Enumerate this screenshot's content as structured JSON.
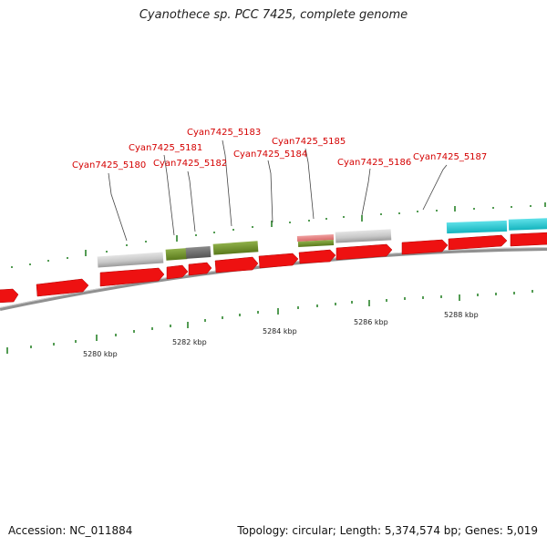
{
  "title": "Cyanothece sp. PCC 7425, complete genome",
  "footer": {
    "accession": "Accession: NC_011884",
    "summary": "Topology: circular; Length: 5,374,574 bp; Genes: 5,019"
  },
  "colors": {
    "forward_cds": "#ee1111",
    "backbone": "#888888",
    "tick": "#1a7a1a",
    "label": "#d40000",
    "hit_grey": "#c8c8c8",
    "hit_olive": "#6b8e23",
    "hit_dark": "#666666",
    "hit_salmon": "#e08080",
    "hit_cyan": "#1ec8d2"
  },
  "scale_labels": [
    "5280 kbp",
    "5282 kbp",
    "5284 kbp",
    "5286 kbp",
    "5288 kbp"
  ],
  "gene_labels": [
    "Cyan7425_5180",
    "Cyan7425_5181",
    "Cyan7425_5182",
    "Cyan7425_5183",
    "Cyan7425_5184",
    "Cyan7425_5185",
    "Cyan7425_5186",
    "Cyan7425_5187"
  ]
}
